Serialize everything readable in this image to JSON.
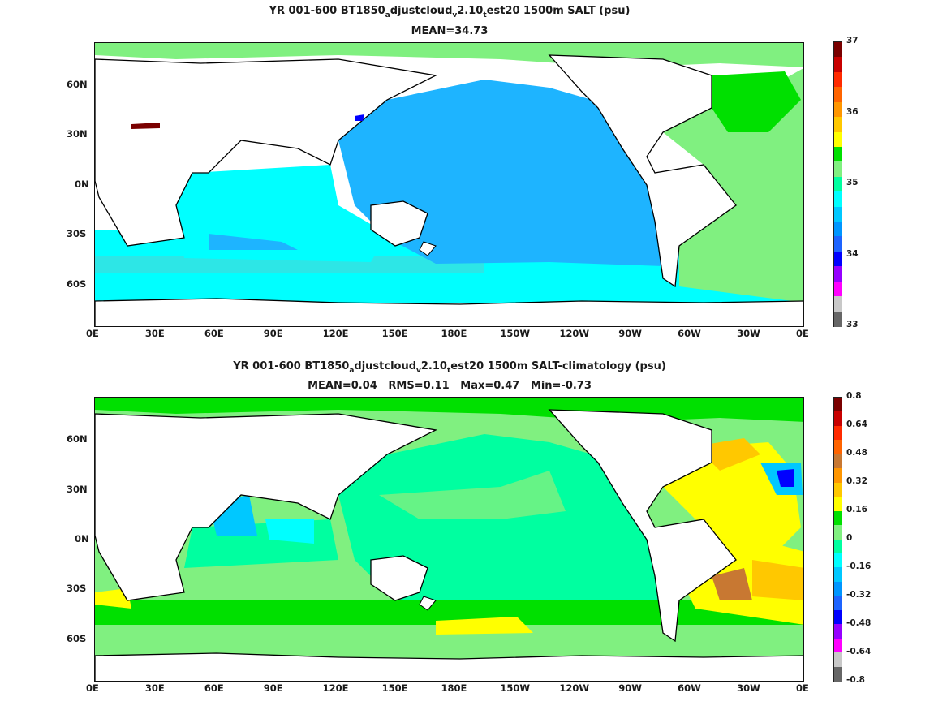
{
  "top_panel": {
    "title_pre": "YR 001-600 BT1850",
    "title_sub1": "a",
    "title_mid1": "djustcloud",
    "title_sub2": "v",
    "title_mid2": "2.10",
    "title_sub3": "t",
    "title_post": "est20 1500m SALT (psu)",
    "subtitle": "MEAN=34.73",
    "y_ticks": [
      "60N",
      "30N",
      "0N",
      "30S",
      "60S"
    ],
    "x_ticks": [
      "0E",
      "30E",
      "60E",
      "90E",
      "120E",
      "150E",
      "180E",
      "150W",
      "120W",
      "90W",
      "60W",
      "30W",
      "0E"
    ],
    "colorbar_labels": [
      "37",
      "36",
      "35",
      "34",
      "33"
    ],
    "colorbar_colors": [
      "#7a0000",
      "#c80000",
      "#ff2a00",
      "#ff6400",
      "#ff9600",
      "#ffc800",
      "#ffff00",
      "#00e000",
      "#80f080",
      "#00ffa0",
      "#00ffff",
      "#00c8ff",
      "#0096ff",
      "#1e64ff",
      "#0000ff",
      "#9600ff",
      "#ff00ff",
      "#c8c8c8",
      "#666666"
    ]
  },
  "bottom_panel": {
    "title_pre": "YR 001-600 BT1850",
    "title_sub1": "a",
    "title_mid1": "djustcloud",
    "title_sub2": "v",
    "title_mid2": "2.10",
    "title_sub3": "t",
    "title_post": "est20 1500m SALT-climatology (psu)",
    "subtitle": "MEAN=0.04   RMS=0.11   Max=0.47   Min=-0.73",
    "y_ticks": [
      "60N",
      "30N",
      "0N",
      "30S",
      "60S"
    ],
    "x_ticks": [
      "0E",
      "30E",
      "60E",
      "90E",
      "120E",
      "150E",
      "180E",
      "150W",
      "120W",
      "90W",
      "60W",
      "30W",
      "0E"
    ],
    "colorbar_labels": [
      "0.8",
      "0.64",
      "0.48",
      "0.32",
      "0.16",
      "0",
      "-0.16",
      "-0.32",
      "-0.48",
      "-0.64",
      "-0.8"
    ],
    "colorbar_colors": [
      "#7a0000",
      "#c80000",
      "#ff2a00",
      "#ff6400",
      "#c87832",
      "#ff9600",
      "#ffc800",
      "#ffff00",
      "#00e000",
      "#80f080",
      "#00ffa0",
      "#00ffff",
      "#00c8ff",
      "#0096ff",
      "#1e64ff",
      "#0000ff",
      "#9600ff",
      "#ff00ff",
      "#c8c8c8",
      "#666666"
    ]
  },
  "colors": {
    "land": "#ffffff",
    "coast": "#000000",
    "pacific_salt": "#1eb4ff",
    "indian_salt": "#00ffff",
    "southern_salt": "#00ffff",
    "atlantic_salt": "#80f080",
    "north_atlantic_salt": "#00e000",
    "anom_base": "#80f080",
    "anom_pacific": "#00ffa0",
    "anom_warm": "#ffff00",
    "anom_hot": "#ffc800"
  }
}
